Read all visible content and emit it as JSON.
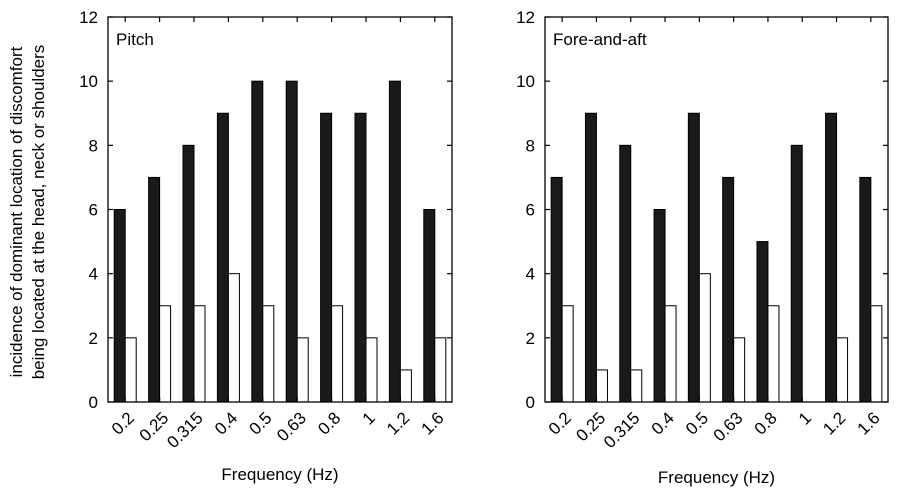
{
  "chart_data": [
    {
      "type": "bar",
      "panel_label": "Pitch",
      "xlabel": "Frequency (Hz)",
      "ylabel_lines": [
        "incidence of dominant location of discomfort",
        "being located at the head, neck or shoulders"
      ],
      "categories": [
        "0.2",
        "0.25",
        "0.315",
        "0.4",
        "0.5",
        "0.63",
        "0.8",
        "1",
        "1.2",
        "1.6"
      ],
      "series": [
        {
          "fill": "#1a1a1a",
          "values": [
            6,
            7,
            8,
            9,
            10,
            10,
            9,
            9,
            10,
            6
          ]
        },
        {
          "fill": "#ffffff",
          "values": [
            2,
            3,
            3,
            4,
            3,
            2,
            3,
            2,
            1,
            2
          ]
        }
      ],
      "ylim": [
        0,
        12
      ],
      "yticks": [
        "0",
        "2",
        "4",
        "6",
        "8",
        "10",
        "12"
      ],
      "grid": false
    },
    {
      "type": "bar",
      "panel_label": "Fore-and-aft",
      "xlabel": "Frequency (Hz)",
      "categories": [
        "0.2",
        "0.25",
        "0.315",
        "0.4",
        "0.5",
        "0.63",
        "0.8",
        "1",
        "1.2",
        "1.6"
      ],
      "series": [
        {
          "fill": "#1a1a1a",
          "values": [
            7,
            9,
            8,
            6,
            9,
            7,
            5,
            8,
            9,
            7
          ]
        },
        {
          "fill": "#ffffff",
          "values": [
            3,
            1,
            1,
            3,
            4,
            2,
            3,
            0,
            2,
            3
          ]
        }
      ],
      "ylim": [
        0,
        12
      ],
      "yticks": [
        "0",
        "2",
        "4",
        "6",
        "8",
        "10",
        "12"
      ],
      "grid": false
    }
  ]
}
